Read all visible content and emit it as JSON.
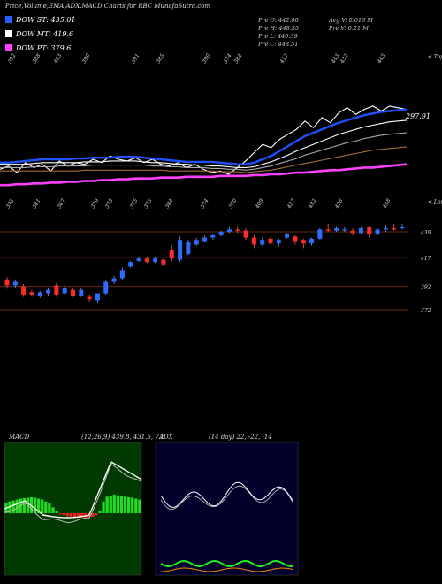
{
  "title": "Price,Volume,EMA,ADX,MACD Charts for RBC MunafaSutra.com",
  "legend": [
    {
      "label": "DOW ST: 435.01",
      "color": "#2060ff"
    },
    {
      "label": "DOW MT: 419.6",
      "color": "#ffffff"
    },
    {
      "label": "DOW PT: 379.6",
      "color": "#ff40ff"
    }
  ],
  "stats": {
    "pre_o": "Pre O: 442.00",
    "pre_h": "Pre H: 448.35",
    "pre_l": "Pre L: 440.39",
    "pre_c": "Pre C: 448.51",
    "avg_v": "Avg V: 0.016 M",
    "pre_v": "Pre V: 0.21 M"
  },
  "chart_data": [
    {
      "type": "line",
      "name": "ema-panel",
      "top_labels": [
        "392",
        "388",
        "403",
        "390",
        "391",
        "385",
        "390",
        "374",
        "384",
        "412",
        "443",
        "432",
        "443"
      ],
      "top_right_label": "< Tops",
      "bottom_labels": [
        "392",
        "381",
        "367",
        "379",
        "375",
        "375",
        "373",
        "384",
        "374",
        "370",
        "409",
        "427",
        "432",
        "428",
        "438"
      ],
      "bottom_right_label": "< Lows",
      "price_label": "297.91",
      "series": [
        {
          "color": "#ffffff",
          "values": [
            0.78,
            0.74,
            0.82,
            0.7,
            0.76,
            0.72,
            0.8,
            0.68,
            0.74,
            0.7,
            0.72,
            0.66,
            0.7,
            0.62,
            0.66,
            0.68,
            0.64,
            0.7,
            0.66,
            0.72,
            0.74,
            0.7,
            0.76,
            0.72,
            0.78,
            0.82,
            0.8,
            0.84,
            0.76,
            0.68,
            0.58,
            0.48,
            0.52,
            0.42,
            0.36,
            0.3,
            0.2,
            0.28,
            0.16,
            0.22,
            0.1,
            0.04,
            0.12,
            0.06,
            0.02,
            0.08,
            0.02,
            0.04,
            0.06
          ]
        },
        {
          "color": "#1e50ff",
          "width": 2.4,
          "values": [
            0.7,
            0.7,
            0.69,
            0.68,
            0.67,
            0.66,
            0.66,
            0.66,
            0.66,
            0.65,
            0.65,
            0.64,
            0.64,
            0.64,
            0.63,
            0.63,
            0.63,
            0.64,
            0.65,
            0.66,
            0.67,
            0.68,
            0.69,
            0.69,
            0.69,
            0.69,
            0.7,
            0.71,
            0.72,
            0.72,
            0.7,
            0.66,
            0.62,
            0.56,
            0.5,
            0.44,
            0.38,
            0.34,
            0.3,
            0.26,
            0.22,
            0.19,
            0.16,
            0.13,
            0.11,
            0.09,
            0.08,
            0.07,
            0.06
          ]
        },
        {
          "color": "#ffffff",
          "values": [
            0.72,
            0.72,
            0.72,
            0.72,
            0.71,
            0.7,
            0.7,
            0.7,
            0.7,
            0.7,
            0.69,
            0.69,
            0.69,
            0.68,
            0.68,
            0.68,
            0.68,
            0.69,
            0.7,
            0.7,
            0.71,
            0.72,
            0.72,
            0.73,
            0.73,
            0.74,
            0.74,
            0.75,
            0.76,
            0.76,
            0.75,
            0.72,
            0.69,
            0.65,
            0.61,
            0.56,
            0.52,
            0.48,
            0.44,
            0.4,
            0.36,
            0.33,
            0.3,
            0.27,
            0.25,
            0.23,
            0.21,
            0.2,
            0.19
          ]
        },
        {
          "color": "#aaaaaa",
          "values": [
            0.76,
            0.76,
            0.76,
            0.76,
            0.75,
            0.75,
            0.75,
            0.74,
            0.74,
            0.74,
            0.74,
            0.73,
            0.73,
            0.73,
            0.73,
            0.73,
            0.73,
            0.73,
            0.74,
            0.74,
            0.75,
            0.75,
            0.76,
            0.76,
            0.76,
            0.77,
            0.77,
            0.78,
            0.78,
            0.79,
            0.78,
            0.76,
            0.74,
            0.71,
            0.68,
            0.65,
            0.61,
            0.58,
            0.55,
            0.52,
            0.49,
            0.46,
            0.44,
            0.41,
            0.39,
            0.37,
            0.36,
            0.35,
            0.34
          ]
        },
        {
          "color": "#a0703a",
          "values": [
            0.8,
            0.8,
            0.8,
            0.8,
            0.8,
            0.8,
            0.8,
            0.8,
            0.8,
            0.8,
            0.79,
            0.79,
            0.79,
            0.79,
            0.79,
            0.79,
            0.79,
            0.79,
            0.79,
            0.79,
            0.8,
            0.8,
            0.8,
            0.8,
            0.8,
            0.8,
            0.81,
            0.81,
            0.81,
            0.82,
            0.81,
            0.8,
            0.79,
            0.77,
            0.75,
            0.73,
            0.71,
            0.69,
            0.67,
            0.65,
            0.63,
            0.61,
            0.59,
            0.57,
            0.55,
            0.54,
            0.53,
            0.52,
            0.51
          ]
        },
        {
          "color": "#ff40ff",
          "width": 2.6,
          "values": [
            0.97,
            0.97,
            0.96,
            0.96,
            0.95,
            0.95,
            0.94,
            0.94,
            0.93,
            0.93,
            0.92,
            0.92,
            0.91,
            0.91,
            0.9,
            0.9,
            0.89,
            0.89,
            0.89,
            0.88,
            0.88,
            0.88,
            0.87,
            0.87,
            0.87,
            0.87,
            0.86,
            0.86,
            0.86,
            0.86,
            0.85,
            0.85,
            0.84,
            0.84,
            0.83,
            0.82,
            0.82,
            0.81,
            0.8,
            0.79,
            0.79,
            0.78,
            0.77,
            0.76,
            0.76,
            0.75,
            0.74,
            0.73,
            0.72
          ]
        }
      ]
    },
    {
      "type": "candlestick",
      "name": "price-panel",
      "price_levels": [
        "439",
        "417",
        "392",
        "372"
      ],
      "candles": [
        {
          "o": 398,
          "c": 393,
          "h": 400,
          "l": 390
        },
        {
          "o": 393,
          "c": 396,
          "h": 398,
          "l": 391
        },
        {
          "o": 392,
          "c": 385,
          "h": 394,
          "l": 383
        },
        {
          "o": 387,
          "c": 385,
          "h": 389,
          "l": 383
        },
        {
          "o": 384,
          "c": 387,
          "h": 388,
          "l": 382
        },
        {
          "o": 386,
          "c": 389,
          "h": 391,
          "l": 384
        },
        {
          "o": 393,
          "c": 385,
          "h": 395,
          "l": 383
        },
        {
          "o": 386,
          "c": 391,
          "h": 393,
          "l": 385
        },
        {
          "o": 389,
          "c": 384,
          "h": 390,
          "l": 383
        },
        {
          "o": 384,
          "c": 389,
          "h": 391,
          "l": 383
        },
        {
          "o": 383,
          "c": 381,
          "h": 385,
          "l": 379
        },
        {
          "o": 380,
          "c": 386,
          "h": 386,
          "l": 378
        },
        {
          "o": 386,
          "c": 396,
          "h": 397,
          "l": 385
        },
        {
          "o": 396,
          "c": 399,
          "h": 401,
          "l": 394
        },
        {
          "o": 399,
          "c": 406,
          "h": 408,
          "l": 398
        },
        {
          "o": 409,
          "c": 413,
          "h": 414,
          "l": 408
        },
        {
          "o": 414,
          "c": 416,
          "h": 418,
          "l": 413
        },
        {
          "o": 416,
          "c": 413,
          "h": 417,
          "l": 412
        },
        {
          "o": 413,
          "c": 416,
          "h": 417,
          "l": 412
        },
        {
          "o": 415,
          "c": 411,
          "h": 416,
          "l": 409
        },
        {
          "o": 423,
          "c": 416,
          "h": 427,
          "l": 414
        },
        {
          "o": 415,
          "c": 432,
          "h": 435,
          "l": 413
        },
        {
          "o": 420,
          "c": 430,
          "h": 432,
          "l": 419
        },
        {
          "o": 428,
          "c": 432,
          "h": 434,
          "l": 427
        },
        {
          "o": 431,
          "c": 434,
          "h": 436,
          "l": 430
        },
        {
          "o": 434,
          "c": 436,
          "h": 437,
          "l": 432
        },
        {
          "o": 436,
          "c": 439,
          "h": 440,
          "l": 435
        },
        {
          "o": 439,
          "c": 441,
          "h": 443,
          "l": 438
        },
        {
          "o": 441,
          "c": 440,
          "h": 444,
          "l": 438
        },
        {
          "o": 440,
          "c": 434,
          "h": 442,
          "l": 432
        },
        {
          "o": 434,
          "c": 428,
          "h": 436,
          "l": 425
        },
        {
          "o": 428,
          "c": 432,
          "h": 434,
          "l": 427
        },
        {
          "o": 433,
          "c": 429,
          "h": 435,
          "l": 428
        },
        {
          "o": 429,
          "c": 432,
          "h": 433,
          "l": 426
        },
        {
          "o": 434,
          "c": 437,
          "h": 438,
          "l": 433
        },
        {
          "o": 435,
          "c": 431,
          "h": 436,
          "l": 428
        },
        {
          "o": 432,
          "c": 429,
          "h": 433,
          "l": 425
        },
        {
          "o": 429,
          "c": 433,
          "h": 434,
          "l": 427
        },
        {
          "o": 433,
          "c": 441,
          "h": 442,
          "l": 432
        },
        {
          "o": 441,
          "c": 440,
          "h": 446,
          "l": 439
        },
        {
          "o": 440,
          "c": 442,
          "h": 444,
          "l": 439
        },
        {
          "o": 441,
          "c": 441,
          "h": 443,
          "l": 439
        },
        {
          "o": 440,
          "c": 438,
          "h": 442,
          "l": 436
        },
        {
          "o": 438,
          "c": 442,
          "h": 443,
          "l": 437
        },
        {
          "o": 443,
          "c": 437,
          "h": 444,
          "l": 434
        },
        {
          "o": 437,
          "c": 441,
          "h": 442,
          "l": 436
        },
        {
          "o": 441,
          "c": 442,
          "h": 445,
          "l": 439
        },
        {
          "o": 442,
          "c": 441,
          "h": 446,
          "l": 440
        },
        {
          "o": 442,
          "c": 443,
          "h": 446,
          "l": 441
        }
      ]
    },
    {
      "type": "bar",
      "name": "macd-panel",
      "label": "MACD",
      "params": "(12,26,9) 439.8, 431.5, 7.8",
      "histogram": [
        0.5,
        0.6,
        0.65,
        0.7,
        0.75,
        0.78,
        0.8,
        0.82,
        0.8,
        0.75,
        0.7,
        0.6,
        0.5,
        0.3,
        0.1,
        -0.05,
        -0.1,
        -0.15,
        -0.18,
        -0.2,
        -0.22,
        -0.22,
        -0.22,
        -0.2,
        -0.18,
        -0.1,
        0.1,
        0.6,
        0.85,
        0.9,
        0.95,
        0.92,
        0.88,
        0.85,
        0.82,
        0.8,
        0.75,
        0.7
      ]
    },
    {
      "type": "line",
      "name": "adx-panel",
      "label": "ADX",
      "params": "(14 day) 22, -22, -14"
    }
  ]
}
